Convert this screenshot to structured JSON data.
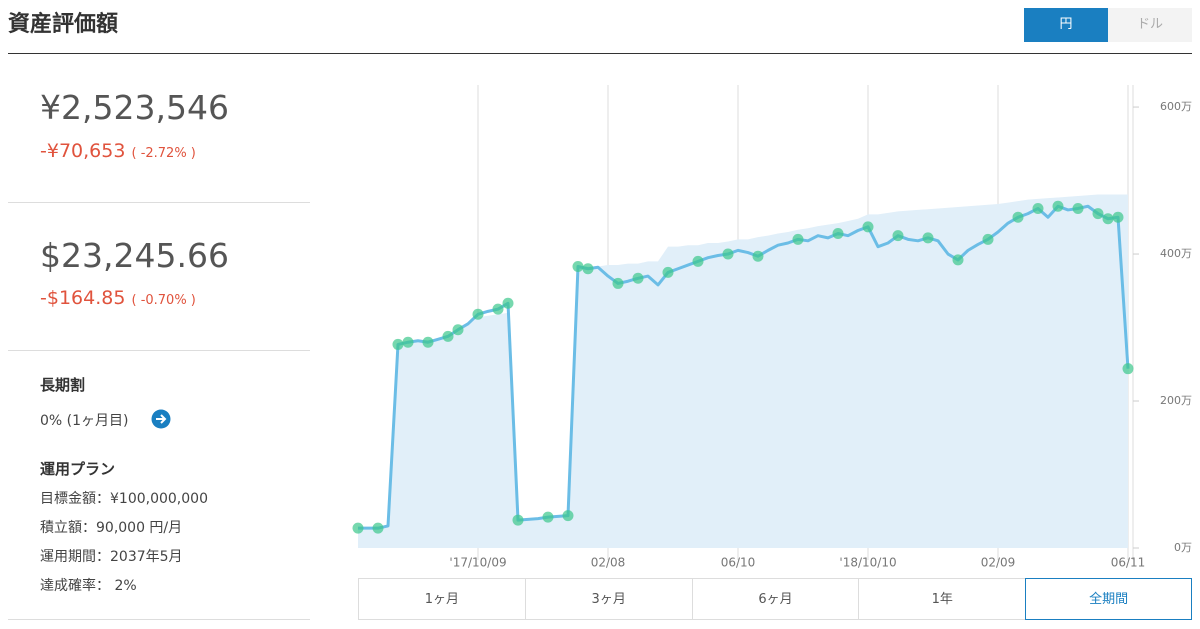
{
  "header": {
    "title": "資産評価額",
    "currency_toggle": [
      "円",
      "ドル"
    ]
  },
  "summary": {
    "jpy": {
      "value": "¥2,523,546",
      "change": "-¥70,653",
      "change_pct": "( -2.72% )"
    },
    "usd": {
      "value": "$23,245.66",
      "change": "-$164.85",
      "change_pct": "( -0.70% )"
    }
  },
  "long_term_discount": {
    "title": "長期割",
    "text": "0% (1ヶ月目)"
  },
  "plan": {
    "title": "運用プラン",
    "items": [
      "目標金額：¥100,000,000",
      "積立額：90,000 円/月",
      "運用期間：2037年5月",
      "達成確率： 2%"
    ]
  },
  "chart_data": {
    "type": "line",
    "categories": [
      null,
      null,
      null,
      null,
      null,
      null,
      null,
      null,
      null,
      null,
      null,
      null,
      "'17/10/09",
      null,
      null,
      null,
      null,
      null,
      null,
      null,
      null,
      null,
      null,
      null,
      null,
      "02/08",
      null,
      null,
      null,
      null,
      null,
      null,
      null,
      null,
      null,
      null,
      null,
      null,
      "06/10",
      null,
      null,
      null,
      null,
      null,
      null,
      null,
      null,
      null,
      null,
      null,
      null,
      "'18/10/10",
      null,
      null,
      null,
      null,
      null,
      null,
      null,
      null,
      null,
      null,
      null,
      null,
      "02/09",
      null,
      null,
      null,
      null,
      null,
      null,
      null,
      null,
      null,
      null,
      null,
      null,
      "06/11"
    ],
    "series": [
      {
        "type": "area",
        "color": "#e1eff9",
        "values": [
          27,
          27,
          27,
          30,
          277,
          280,
          282,
          283,
          285,
          290,
          297,
          305,
          314,
          316,
          318,
          320,
          38,
          39,
          40,
          41,
          42,
          43,
          383,
          383,
          383,
          385,
          385,
          387,
          387,
          390,
          390,
          410,
          410,
          412,
          412,
          415,
          415,
          417,
          420,
          420,
          423,
          425,
          428,
          430,
          433,
          435,
          438,
          440,
          442,
          445,
          448,
          454,
          454,
          456,
          458,
          459,
          460,
          461,
          462,
          463,
          464,
          465,
          466,
          467,
          468,
          470,
          472,
          474,
          475,
          476,
          477,
          478,
          479,
          480,
          481,
          481,
          481,
          481
        ]
      },
      {
        "type": "line",
        "color": "#6bbde6",
        "values": [
          27,
          27,
          27,
          30,
          277,
          280,
          282,
          280,
          284,
          288,
          297,
          305,
          318,
          322,
          325,
          333,
          38,
          39,
          40,
          42,
          43,
          44,
          383,
          380,
          382,
          370,
          360,
          363,
          367,
          370,
          358,
          375,
          380,
          385,
          390,
          395,
          398,
          400,
          405,
          402,
          397,
          405,
          412,
          415,
          420,
          418,
          425,
          422,
          428,
          425,
          432,
          437,
          410,
          415,
          425,
          420,
          418,
          422,
          418,
          400,
          392,
          405,
          413,
          420,
          430,
          442,
          450,
          455,
          462,
          450,
          465,
          460,
          462,
          465,
          455,
          448,
          450,
          244
        ]
      },
      {
        "type": "scatter",
        "color": "#3cc88c",
        "values": [
          27,
          null,
          27,
          null,
          277,
          280,
          null,
          280,
          null,
          288,
          297,
          null,
          318,
          null,
          325,
          333,
          38,
          null,
          null,
          42,
          null,
          44,
          383,
          380,
          null,
          null,
          360,
          null,
          367,
          null,
          null,
          375,
          null,
          null,
          390,
          null,
          null,
          400,
          null,
          null,
          397,
          null,
          null,
          null,
          420,
          null,
          null,
          null,
          428,
          null,
          null,
          437,
          null,
          null,
          425,
          null,
          null,
          422,
          null,
          null,
          392,
          null,
          null,
          420,
          null,
          null,
          450,
          null,
          462,
          null,
          465,
          null,
          462,
          null,
          455,
          448,
          450,
          244
        ]
      }
    ],
    "ylim": [
      0,
      630
    ],
    "yticks": [
      {
        "value": 0,
        "label": "0万"
      },
      {
        "value": 200,
        "label": "200万"
      },
      {
        "value": 400,
        "label": "400万"
      },
      {
        "value": 600,
        "label": "600万"
      }
    ],
    "grid": true
  },
  "periods": [
    "1ヶ月",
    "3ヶ月",
    "6ヶ月",
    "1年",
    "全期間"
  ]
}
